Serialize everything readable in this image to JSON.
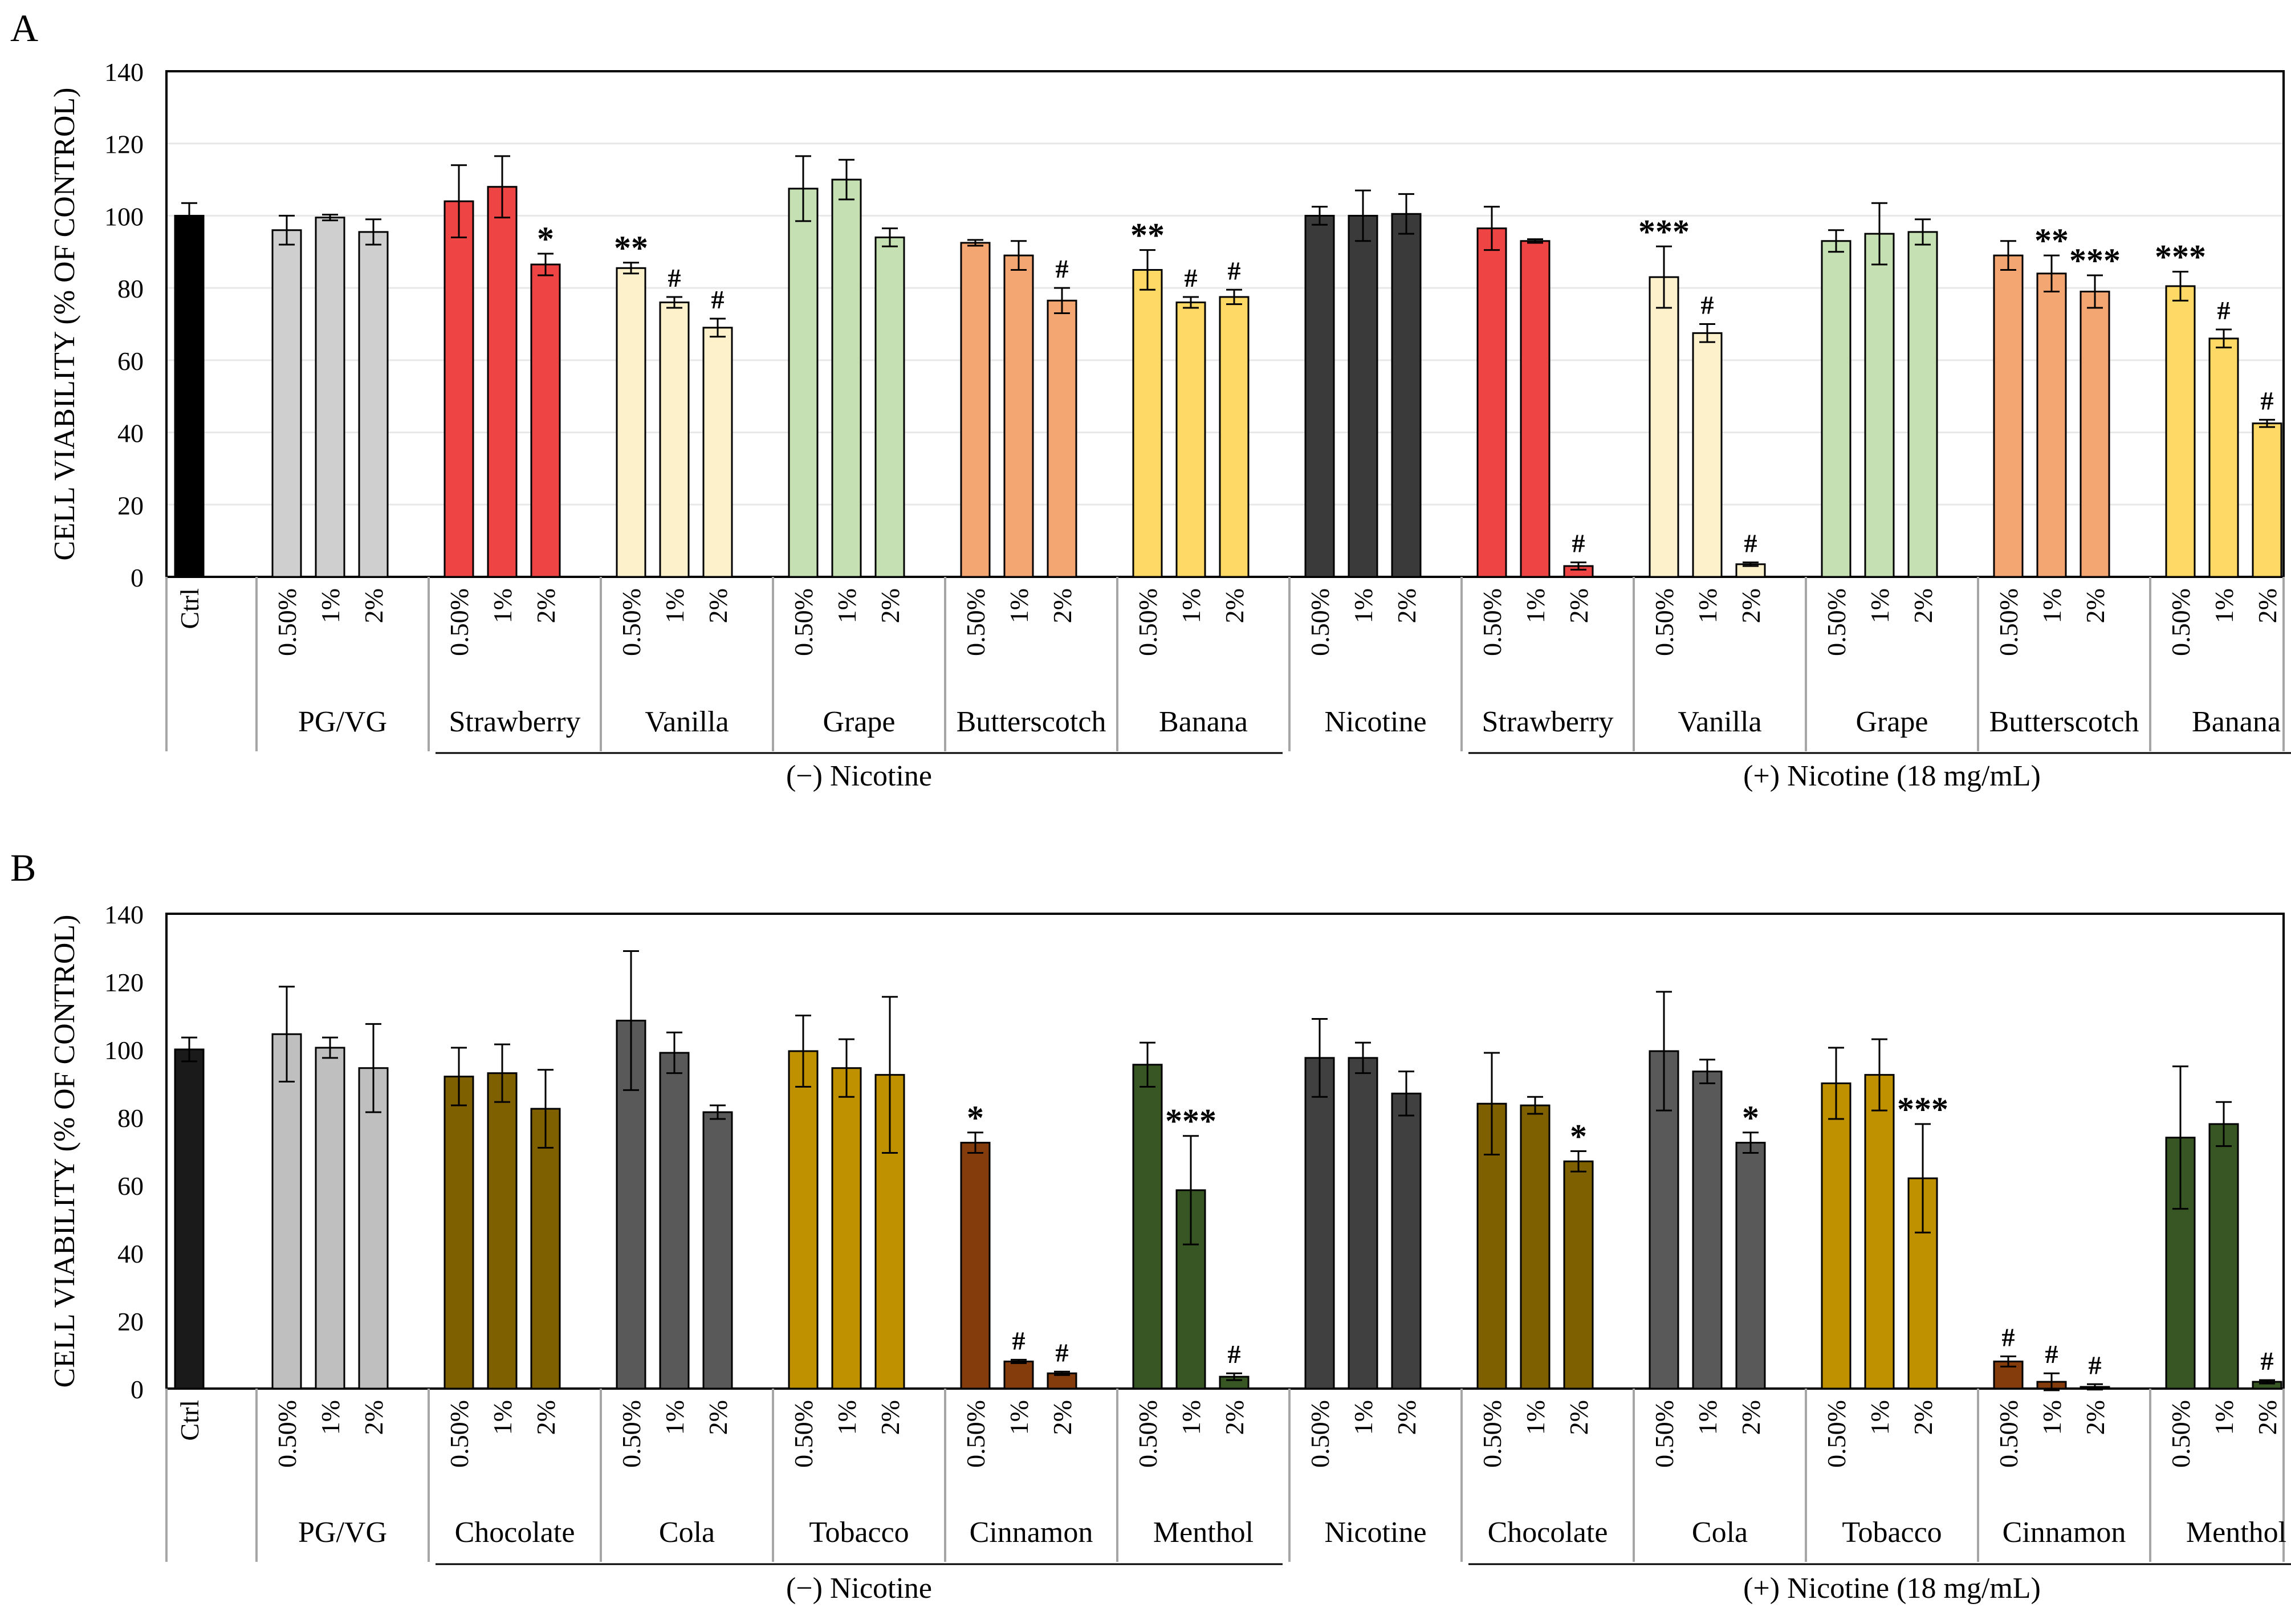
{
  "chart_data": [
    {
      "type": "bar",
      "panel_label": "A",
      "ylabel": "CELL VIABILITY  (% OF CONTROL)",
      "ylim": [
        0,
        140
      ],
      "yticks": [
        "0",
        "20",
        "40",
        "60",
        "80",
        "100",
        "120",
        "140"
      ],
      "grid": true,
      "ctrl": {
        "label": "Ctrl",
        "value": 100,
        "err": 3.5
      },
      "groups": [
        {
          "name": "PG/VG",
          "labels": [
            "0.50%",
            "1%",
            "2%"
          ],
          "values": [
            96,
            99.5,
            95.5
          ],
          "errors": [
            4,
            0.8,
            3.5
          ],
          "marks": [
            "",
            "",
            ""
          ],
          "color": "#cfcfcf"
        },
        {
          "name": "Strawberry",
          "labels": [
            "0.50%",
            "1%",
            "2%"
          ],
          "values": [
            104,
            108,
            86.5
          ],
          "errors": [
            10,
            8.5,
            3
          ],
          "marks": [
            "",
            "",
            "*"
          ],
          "color": "#ee4444"
        },
        {
          "name": "Vanilla",
          "labels": [
            "0.50%",
            "1%",
            "2%"
          ],
          "values": [
            85.5,
            76,
            69
          ],
          "errors": [
            1.5,
            1.5,
            2.5
          ],
          "marks": [
            "**",
            "#",
            "#"
          ],
          "color": "#fdf1cc"
        },
        {
          "name": "Grape",
          "labels": [
            "0.50%",
            "1%",
            "2%"
          ],
          "values": [
            107.5,
            110,
            94
          ],
          "errors": [
            9,
            5.5,
            2.5
          ],
          "marks": [
            "",
            "",
            ""
          ],
          "color": "#c5e0b3"
        },
        {
          "name": "Butterscotch",
          "labels": [
            "0.50%",
            "1%",
            "2%"
          ],
          "values": [
            92.5,
            89,
            76.5
          ],
          "errors": [
            0.8,
            4,
            3.5
          ],
          "marks": [
            "",
            "",
            "#"
          ],
          "color": "#f4a672"
        },
        {
          "name": "Banana",
          "labels": [
            "0.50%",
            "1%",
            "2%"
          ],
          "values": [
            85,
            76,
            77.5
          ],
          "errors": [
            5.5,
            1.5,
            2
          ],
          "marks": [
            "**",
            "#",
            "#"
          ],
          "color": "#ffd966"
        },
        {
          "name": "Nicotine",
          "labels": [
            "0.50%",
            "1%",
            "2%"
          ],
          "values": [
            100,
            100,
            100.5
          ],
          "errors": [
            2.5,
            7,
            5.5
          ],
          "marks": [
            "",
            "",
            ""
          ],
          "color": "#3a3a3a"
        },
        {
          "name": "Strawberry",
          "labels": [
            "0.50%",
            "1%",
            "2%"
          ],
          "values": [
            96.5,
            93,
            3
          ],
          "errors": [
            6,
            0.5,
            1
          ],
          "marks": [
            "",
            "",
            "#"
          ],
          "color": "#ee4444"
        },
        {
          "name": "Vanilla",
          "labels": [
            "0.50%",
            "1%",
            "2%"
          ],
          "values": [
            83,
            67.5,
            3.5
          ],
          "errors": [
            8.5,
            2.5,
            0.5
          ],
          "marks": [
            "***",
            "#",
            "#"
          ],
          "color": "#fdf1cc"
        },
        {
          "name": "Grape",
          "labels": [
            "0.50%",
            "1%",
            "2%"
          ],
          "values": [
            93,
            95,
            95.5
          ],
          "errors": [
            3,
            8.5,
            3.5
          ],
          "marks": [
            "",
            "",
            ""
          ],
          "color": "#c5e0b3"
        },
        {
          "name": "Butterscotch",
          "labels": [
            "0.50%",
            "1%",
            "2%"
          ],
          "values": [
            89,
            84,
            79
          ],
          "errors": [
            4,
            5,
            4.5
          ],
          "marks": [
            "",
            "**",
            "***"
          ],
          "color": "#f4a672"
        },
        {
          "name": "Banana",
          "labels": [
            "0.50%",
            "1%",
            "2%"
          ],
          "values": [
            80.5,
            66,
            42.5
          ],
          "errors": [
            4,
            2.5,
            1
          ],
          "marks": [
            "***",
            "#",
            "#"
          ],
          "color": "#ffd966"
        }
      ],
      "conditions": [
        {
          "label": "(−) Nicotine",
          "from_group": 1,
          "to_group": 5
        },
        {
          "label": "(+) Nicotine  (18 mg/mL)",
          "from_group": 7,
          "to_group": 11
        }
      ]
    },
    {
      "type": "bar",
      "panel_label": "B",
      "ylabel": "CELL VIABILITY  (% OF CONTROL)",
      "ylim": [
        0,
        140
      ],
      "yticks": [
        "0",
        "20",
        "40",
        "60",
        "80",
        "100",
        "120",
        "140"
      ],
      "grid": false,
      "ctrl": {
        "label": "Ctrl",
        "value": 100,
        "err": 3.5
      },
      "groups": [
        {
          "name": "PG/VG",
          "labels": [
            "0.50%",
            "1%",
            "2%"
          ],
          "values": [
            104.5,
            100.5,
            94.5
          ],
          "errors": [
            14,
            3,
            13
          ],
          "marks": [
            "",
            "",
            ""
          ],
          "color": "#bfbfbf"
        },
        {
          "name": "Chocolate",
          "labels": [
            "0.50%",
            "1%",
            "2%"
          ],
          "values": [
            92,
            93,
            82.5
          ],
          "errors": [
            8.5,
            8.5,
            11.5
          ],
          "marks": [
            "",
            "",
            ""
          ],
          "color": "#7f6000"
        },
        {
          "name": "Cola",
          "labels": [
            "0.50%",
            "1%",
            "2%"
          ],
          "values": [
            108.5,
            99,
            81.5
          ],
          "errors": [
            20.5,
            6,
            2
          ],
          "marks": [
            "",
            "",
            ""
          ],
          "color": "#595959"
        },
        {
          "name": "Tobacco",
          "labels": [
            "0.50%",
            "1%",
            "2%"
          ],
          "values": [
            99.5,
            94.5,
            92.5
          ],
          "errors": [
            10.5,
            8.5,
            23
          ],
          "marks": [
            "",
            "",
            ""
          ],
          "color": "#bf9000"
        },
        {
          "name": "Cinnamon",
          "labels": [
            "0.50%",
            "1%",
            "2%"
          ],
          "values": [
            72.5,
            8,
            4.5
          ],
          "errors": [
            3,
            0.5,
            0.5
          ],
          "marks": [
            "*",
            "#",
            "#"
          ],
          "color": "#843c0c"
        },
        {
          "name": "Menthol",
          "labels": [
            "0.50%",
            "1%",
            "2%"
          ],
          "values": [
            95.5,
            58.5,
            3.5
          ],
          "errors": [
            6.5,
            16,
            1
          ],
          "marks": [
            "",
            "***",
            "#"
          ],
          "color": "#375623"
        },
        {
          "name": "Nicotine",
          "labels": [
            "0.50%",
            "1%",
            "2%"
          ],
          "values": [
            97.5,
            97.5,
            87
          ],
          "errors": [
            11.5,
            4.5,
            6.5
          ],
          "marks": [
            "",
            "",
            ""
          ],
          "color": "#404040"
        },
        {
          "name": "Chocolate",
          "labels": [
            "0.50%",
            "1%",
            "2%"
          ],
          "values": [
            84,
            83.5,
            67
          ],
          "errors": [
            15,
            2.5,
            3
          ],
          "marks": [
            "",
            "",
            "*"
          ],
          "color": "#7f6000"
        },
        {
          "name": "Cola",
          "labels": [
            "0.50%",
            "1%",
            "2%"
          ],
          "values": [
            99.5,
            93.5,
            72.5
          ],
          "errors": [
            17.5,
            3.5,
            3
          ],
          "marks": [
            "",
            "",
            "*"
          ],
          "color": "#595959"
        },
        {
          "name": "Tobacco",
          "labels": [
            "0.50%",
            "1%",
            "2%"
          ],
          "values": [
            90,
            92.5,
            62
          ],
          "errors": [
            10.5,
            10.5,
            16
          ],
          "marks": [
            "",
            "",
            "***"
          ],
          "color": "#bf9000"
        },
        {
          "name": "Cinnamon",
          "labels": [
            "0.50%",
            "1%",
            "2%"
          ],
          "values": [
            8,
            2,
            0.5
          ],
          "errors": [
            1.5,
            2.5,
            0.8
          ],
          "marks": [
            "#",
            "#",
            "#"
          ],
          "color": "#843c0c"
        },
        {
          "name": "Menthol",
          "labels": [
            "0.50%",
            "1%",
            "2%"
          ],
          "values": [
            74,
            78,
            2
          ],
          "errors": [
            21,
            6.5,
            0.5
          ],
          "marks": [
            "",
            "",
            "#"
          ],
          "color": "#375623"
        }
      ],
      "conditions": [
        {
          "label": "(−) Nicotine",
          "from_group": 1,
          "to_group": 5
        },
        {
          "label": "(+) Nicotine  (18 mg/mL)",
          "from_group": 7,
          "to_group": 11
        }
      ]
    }
  ]
}
